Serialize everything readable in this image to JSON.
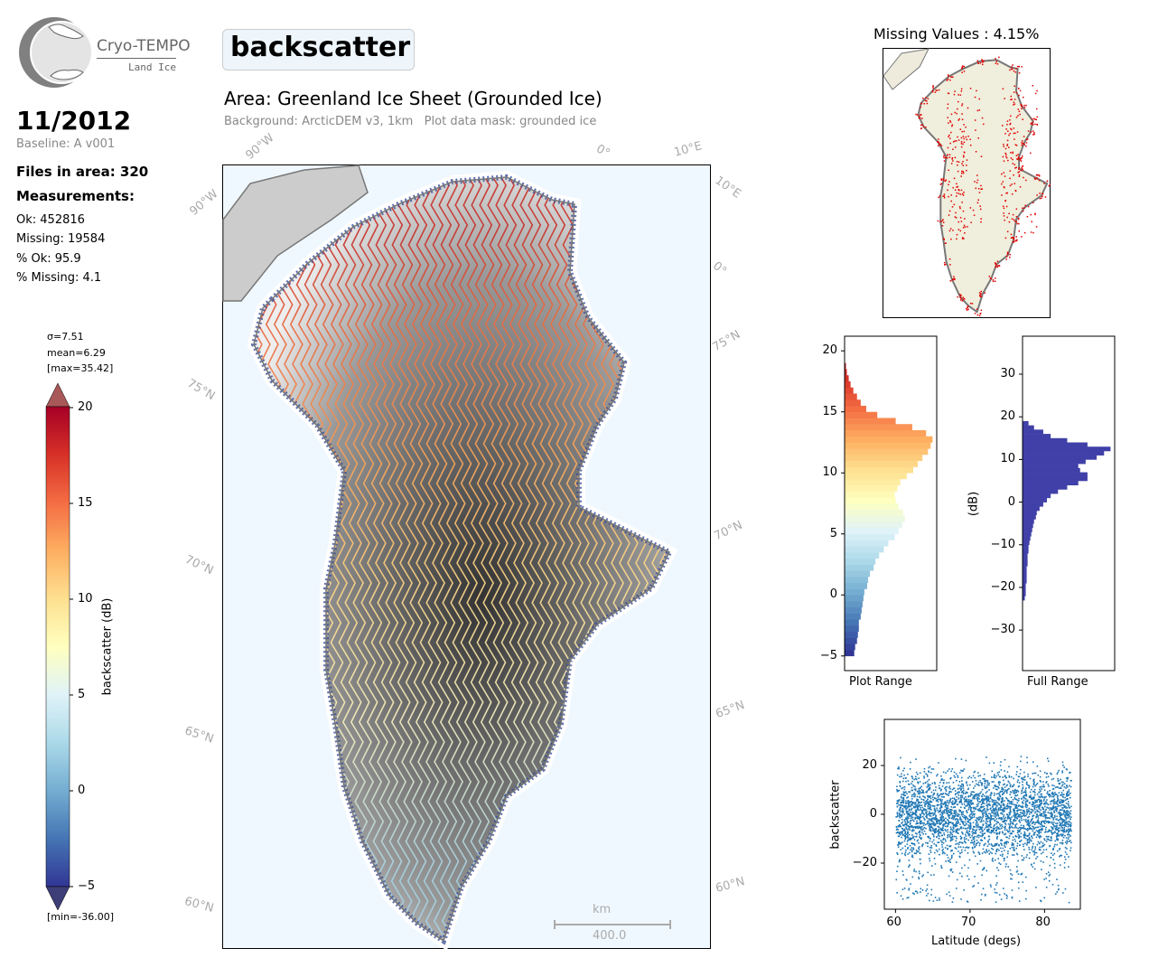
{
  "logo": {
    "name": "Cryo-TEMPO",
    "subtitle": "Land Ice"
  },
  "info": {
    "date": "11/2012",
    "baseline": "Baseline: A v001",
    "files": "Files in area: 320",
    "measurements_heading": "Measurements:",
    "ok": "Ok: 452816",
    "missing": "Missing: 19584",
    "pct_ok": "% Ok: 95.9",
    "pct_missing": "% Missing: 4.1"
  },
  "stats": {
    "sigma": "σ=7.51",
    "mean": "mean=6.29",
    "max": "[max=35.42]",
    "min": "[min=-36.00]"
  },
  "title": "backscatter",
  "area_title": "Area: Greenland Ice Sheet (Grounded Ice)",
  "area_subtitle": "Background: ArcticDEM v3, 1km   Plot data mask: grounded ice",
  "map": {
    "grid_labels": [
      "90°W",
      "0°",
      "10°E",
      "90°W",
      "10°E",
      "0°",
      "75°N",
      "75°N",
      "70°N",
      "70°N",
      "65°N",
      "65°N",
      "60°N",
      "60°N"
    ],
    "scale_unit": "km",
    "scale_value": "400.0"
  },
  "colorbar": {
    "label": "backscatter (dB)",
    "ticks": [
      "20",
      "15",
      "10",
      "5",
      "0",
      "−5"
    ],
    "range": [
      -5,
      20
    ],
    "colors": [
      "#313695",
      "#4575b4",
      "#74add1",
      "#abd9e9",
      "#e0f3f8",
      "#ffffbf",
      "#fee090",
      "#fdae61",
      "#f46d43",
      "#d73027",
      "#a50026"
    ]
  },
  "missing_map": {
    "title": "Missing Values : 4.15%"
  },
  "chart_data": [
    {
      "type": "bar",
      "orientation": "horizontal",
      "title": "",
      "xlabel": "Plot Range",
      "ylabel": "",
      "ylim": [
        -6.2,
        21.2
      ],
      "yticks": [
        "20",
        "15",
        "10",
        "5",
        "0",
        "−5"
      ],
      "bin_width": 0.5,
      "bin_start": [
        -5,
        -4.5,
        -4,
        -3.5,
        -3,
        -2.5,
        -2,
        -1.5,
        -1,
        -0.5,
        0,
        0.5,
        1,
        1.5,
        2,
        2.5,
        3,
        3.5,
        4,
        4.5,
        5,
        5.5,
        6,
        6.5,
        7,
        7.5,
        8,
        8.5,
        9,
        9.5,
        10,
        10.5,
        11,
        11.5,
        12,
        12.5,
        13,
        13.5,
        14,
        14.5,
        15,
        15.5,
        16,
        16.5,
        17,
        17.5,
        18,
        18.5
      ],
      "relative_count": [
        0.1,
        0.11,
        0.13,
        0.14,
        0.15,
        0.15,
        0.17,
        0.18,
        0.19,
        0.2,
        0.21,
        0.24,
        0.25,
        0.27,
        0.31,
        0.33,
        0.37,
        0.42,
        0.47,
        0.54,
        0.58,
        0.62,
        0.65,
        0.63,
        0.58,
        0.55,
        0.54,
        0.57,
        0.6,
        0.67,
        0.74,
        0.79,
        0.84,
        0.9,
        0.93,
        0.95,
        0.88,
        0.73,
        0.55,
        0.35,
        0.23,
        0.17,
        0.13,
        0.09,
        0.06,
        0.04,
        0.02,
        0.01
      ]
    },
    {
      "type": "bar",
      "orientation": "horizontal",
      "title": "",
      "xlabel": "Full Range",
      "ylabel": "(dB)",
      "ylim": [
        -39.5,
        38.9
      ],
      "yticks": [
        "30",
        "20",
        "10",
        "0",
        "−10",
        "−20",
        "−30"
      ],
      "bin_width": 1,
      "color": "#4040a8",
      "bin_start": [
        -23,
        -22,
        -21,
        -20,
        -19,
        -18,
        -17,
        -16,
        -15,
        -14,
        -13,
        -12,
        -11,
        -10,
        -9,
        -8,
        -7,
        -6,
        -5,
        -4,
        -3,
        -2,
        -1,
        0,
        1,
        2,
        3,
        4,
        5,
        6,
        7,
        8,
        9,
        10,
        11,
        12,
        13,
        14,
        15,
        16,
        17,
        18
      ],
      "relative_count": [
        0.02,
        0.03,
        0.03,
        0.03,
        0.04,
        0.04,
        0.04,
        0.04,
        0.05,
        0.05,
        0.05,
        0.06,
        0.06,
        0.07,
        0.08,
        0.09,
        0.1,
        0.11,
        0.12,
        0.14,
        0.15,
        0.18,
        0.22,
        0.26,
        0.3,
        0.38,
        0.48,
        0.6,
        0.7,
        0.7,
        0.62,
        0.6,
        0.68,
        0.8,
        0.88,
        0.95,
        0.7,
        0.48,
        0.3,
        0.22,
        0.12,
        0.06
      ]
    },
    {
      "type": "scatter",
      "title": "",
      "xlabel": "Latitude (degs)",
      "ylabel": "backscatter",
      "xlim": [
        58.5,
        84.8
      ],
      "ylim": [
        -38.9,
        38.9
      ],
      "xticks": [
        "60",
        "70",
        "80"
      ],
      "yticks": [
        "20",
        "0",
        "−20"
      ],
      "color": "#1f77b4",
      "x_extent": [
        60,
        83.5
      ],
      "y_extent": [
        -36,
        35
      ],
      "y_center": 5,
      "y_spread": 9
    }
  ]
}
